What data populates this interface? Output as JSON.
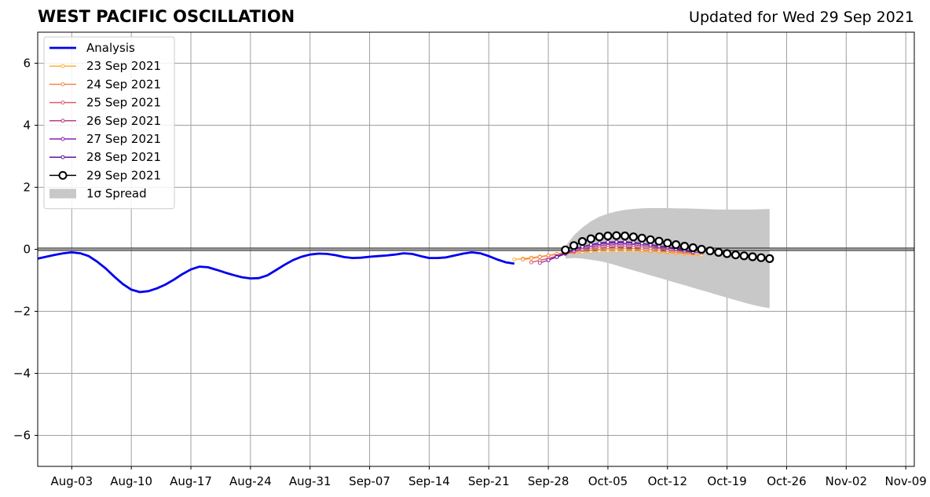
{
  "header": {
    "title": "WEST PACIFIC OSCILLATION",
    "updated": "Updated for Wed 29 Sep 2021"
  },
  "chart_data": {
    "type": "line",
    "title": "WEST PACIFIC OSCILLATION",
    "subtitle": "Updated for Wed 29 Sep 2021",
    "xlabel": "",
    "ylabel": "",
    "x_range": [
      "2021-07-30",
      "2021-11-10"
    ],
    "ylim": [
      -7,
      7
    ],
    "y_ticks": [
      -6,
      -4,
      -2,
      0,
      2,
      4,
      6
    ],
    "y_tick_labels": [
      "−6",
      "−4",
      "−2",
      "0",
      "2",
      "4",
      "6"
    ],
    "x_ticks": [
      "2021-08-03",
      "2021-08-10",
      "2021-08-17",
      "2021-08-24",
      "2021-08-31",
      "2021-09-07",
      "2021-09-14",
      "2021-09-21",
      "2021-09-28",
      "2021-10-05",
      "2021-10-12",
      "2021-10-19",
      "2021-10-26",
      "2021-11-02",
      "2021-11-09"
    ],
    "x_tick_labels": [
      "Aug-03",
      "Aug-10",
      "Aug-17",
      "Aug-24",
      "Aug-31",
      "Sep-07",
      "Sep-14",
      "Sep-21",
      "Sep-28",
      "Oct-05",
      "Oct-12",
      "Oct-19",
      "Oct-26",
      "Nov-02",
      "Nov-09"
    ],
    "grid": true,
    "zero_line": true,
    "legend_placement": "upper-left",
    "series": [
      {
        "name": "Analysis",
        "color": "#0000ee",
        "kind": "analysis",
        "start": "2021-07-30",
        "values": [
          -0.3,
          -0.24,
          -0.18,
          -0.13,
          -0.1,
          -0.13,
          -0.22,
          -0.4,
          -0.62,
          -0.88,
          -1.12,
          -1.3,
          -1.38,
          -1.35,
          -1.26,
          -1.14,
          -0.98,
          -0.8,
          -0.65,
          -0.56,
          -0.58,
          -0.66,
          -0.75,
          -0.83,
          -0.9,
          -0.94,
          -0.93,
          -0.84,
          -0.67,
          -0.5,
          -0.35,
          -0.24,
          -0.17,
          -0.14,
          -0.15,
          -0.19,
          -0.25,
          -0.28,
          -0.27,
          -0.24,
          -0.22,
          -0.2,
          -0.17,
          -0.13,
          -0.15,
          -0.22,
          -0.28,
          -0.28,
          -0.26,
          -0.2,
          -0.14,
          -0.1,
          -0.13,
          -0.22,
          -0.33,
          -0.42,
          -0.46
        ]
      },
      {
        "name": "23 Sep 2021",
        "color": "#ffb23a",
        "kind": "forecast",
        "start": "2021-09-24",
        "values": [
          -0.33,
          -0.3,
          -0.27,
          -0.23,
          -0.2,
          -0.17,
          -0.14,
          -0.11,
          -0.09,
          -0.07,
          -0.06,
          -0.05,
          -0.05,
          -0.05,
          -0.05,
          -0.06,
          -0.07,
          -0.09,
          -0.11,
          -0.13,
          -0.15,
          -0.17,
          -0.19
        ]
      },
      {
        "name": "24 Sep 2021",
        "color": "#f28b4c",
        "kind": "forecast",
        "start": "2021-09-25",
        "values": [
          -0.33,
          -0.29,
          -0.25,
          -0.2,
          -0.15,
          -0.1,
          -0.06,
          -0.03,
          0.0,
          0.01,
          0.02,
          0.02,
          0.01,
          0.0,
          -0.02,
          -0.04,
          -0.06,
          -0.08,
          -0.1,
          -0.12,
          -0.14
        ]
      },
      {
        "name": "25 Sep 2021",
        "color": "#dd5c6c",
        "kind": "forecast",
        "start": "2021-09-26",
        "values": [
          -0.42,
          -0.36,
          -0.29,
          -0.22,
          -0.15,
          -0.08,
          -0.02,
          0.02,
          0.05,
          0.07,
          0.08,
          0.08,
          0.07,
          0.05,
          0.03,
          0.01,
          -0.02,
          -0.05,
          -0.08,
          -0.11
        ]
      },
      {
        "name": "26 Sep 2021",
        "color": "#b5408e",
        "kind": "forecast",
        "start": "2021-09-27",
        "values": [
          -0.44,
          -0.35,
          -0.25,
          -0.15,
          -0.06,
          0.02,
          0.08,
          0.12,
          0.14,
          0.15,
          0.15,
          0.14,
          0.12,
          0.1,
          0.07,
          0.04,
          0.0,
          -0.04,
          -0.08,
          -0.12
        ]
      },
      {
        "name": "27 Sep 2021",
        "color": "#8a1fb4",
        "kind": "forecast",
        "start": "2021-09-28",
        "values": [
          -0.35,
          -0.23,
          -0.11,
          0.0,
          0.08,
          0.14,
          0.18,
          0.2,
          0.21,
          0.21,
          0.2,
          0.18,
          0.15,
          0.11,
          0.07,
          0.03,
          -0.02,
          -0.07
        ]
      },
      {
        "name": "28 Sep 2021",
        "color": "#5a1a9a",
        "kind": "forecast",
        "start": "2021-09-29",
        "values": [
          -0.25,
          -0.12,
          -0.01,
          0.08,
          0.15,
          0.2,
          0.23,
          0.24,
          0.24,
          0.22,
          0.19,
          0.15,
          0.11,
          0.06,
          0.01,
          -0.04,
          -0.09
        ]
      },
      {
        "name": "29 Sep 2021",
        "color": "#000000",
        "kind": "current",
        "start": "2021-09-30",
        "values": [
          -0.02,
          0.12,
          0.25,
          0.34,
          0.4,
          0.43,
          0.44,
          0.43,
          0.4,
          0.36,
          0.31,
          0.26,
          0.2,
          0.15,
          0.1,
          0.05,
          0.0,
          -0.05,
          -0.1,
          -0.14,
          -0.18,
          -0.21,
          -0.24,
          -0.27,
          -0.3
        ]
      },
      {
        "name": "1σ Spread",
        "color": "#c8c8c8",
        "kind": "spread",
        "start": "2021-09-30",
        "upper": [
          0.1,
          0.45,
          0.7,
          0.9,
          1.05,
          1.15,
          1.22,
          1.27,
          1.3,
          1.32,
          1.33,
          1.33,
          1.33,
          1.32,
          1.32,
          1.31,
          1.3,
          1.29,
          1.28,
          1.28,
          1.28,
          1.28,
          1.28,
          1.29,
          1.3
        ],
        "lower": [
          -0.3,
          -0.28,
          -0.3,
          -0.34,
          -0.38,
          -0.44,
          -0.52,
          -0.6,
          -0.68,
          -0.76,
          -0.84,
          -0.92,
          -1.0,
          -1.08,
          -1.16,
          -1.24,
          -1.32,
          -1.4,
          -1.48,
          -1.56,
          -1.64,
          -1.72,
          -1.79,
          -1.85,
          -1.9
        ]
      }
    ]
  }
}
